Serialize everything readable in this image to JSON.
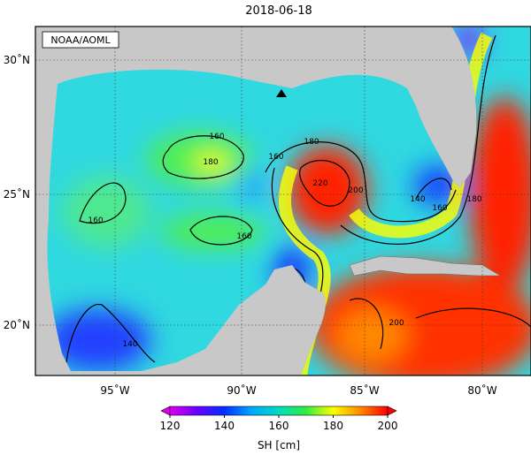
{
  "title": "2018-06-18",
  "credit": "NOAA/AOML",
  "lat_labels": [
    "30˚N",
    "25˚N",
    "20˚N"
  ],
  "lon_labels": [
    "95˚W",
    "90˚W",
    "85˚W",
    "80˚W"
  ],
  "contour_labels": [
    160,
    180,
    160,
    160,
    180,
    160,
    220,
    200,
    140,
    160,
    180,
    140,
    200
  ],
  "colorbar": {
    "label": "SH [cm]",
    "range": [
      120,
      200
    ],
    "ticks": [
      120,
      140,
      160,
      180,
      200
    ],
    "colors": [
      "#dd00ee",
      "#6a00ff",
      "#0030ff",
      "#00a8ff",
      "#00dcc0",
      "#30ee40",
      "#ffff00",
      "#ff8800",
      "#ff0000"
    ]
  }
}
